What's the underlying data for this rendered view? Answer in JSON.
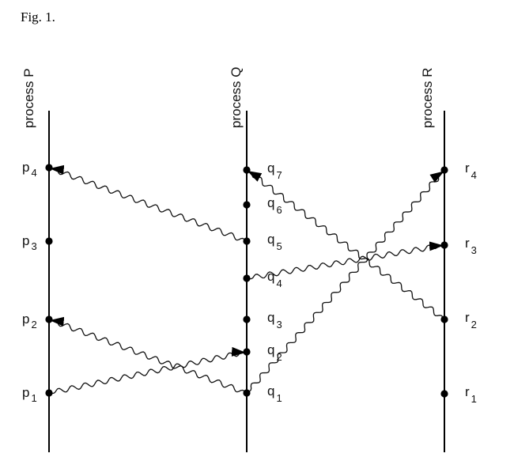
{
  "figure": {
    "caption": "Fig. 1."
  },
  "processes": [
    {
      "id": "P",
      "label": "process P"
    },
    {
      "id": "Q",
      "label": "process Q"
    },
    {
      "id": "R",
      "label": "process R"
    }
  ],
  "events": [
    {
      "id": "p1",
      "process": "P",
      "letter": "p",
      "sub": "1"
    },
    {
      "id": "p2",
      "process": "P",
      "letter": "p",
      "sub": "2"
    },
    {
      "id": "p3",
      "process": "P",
      "letter": "p",
      "sub": "3"
    },
    {
      "id": "p4",
      "process": "P",
      "letter": "p",
      "sub": "4"
    },
    {
      "id": "q1",
      "process": "Q",
      "letter": "q",
      "sub": "1"
    },
    {
      "id": "q2",
      "process": "Q",
      "letter": "q",
      "sub": "2"
    },
    {
      "id": "q3",
      "process": "Q",
      "letter": "q",
      "sub": "3"
    },
    {
      "id": "q4",
      "process": "Q",
      "letter": "q",
      "sub": "4"
    },
    {
      "id": "q5",
      "process": "Q",
      "letter": "q",
      "sub": "5"
    },
    {
      "id": "q6",
      "process": "Q",
      "letter": "q",
      "sub": "6"
    },
    {
      "id": "q7",
      "process": "Q",
      "letter": "q",
      "sub": "7"
    },
    {
      "id": "r1",
      "process": "R",
      "letter": "r",
      "sub": "1"
    },
    {
      "id": "r2",
      "process": "R",
      "letter": "r",
      "sub": "2"
    },
    {
      "id": "r3",
      "process": "R",
      "letter": "r",
      "sub": "3"
    },
    {
      "id": "r4",
      "process": "R",
      "letter": "r",
      "sub": "4"
    }
  ],
  "messages": [
    {
      "from": "p1",
      "to": "q2"
    },
    {
      "from": "q1",
      "to": "p2"
    },
    {
      "from": "q1",
      "to": "r4"
    },
    {
      "from": "q4",
      "to": "r3"
    },
    {
      "from": "q5",
      "to": "p4"
    },
    {
      "from": "r2",
      "to": "q7"
    }
  ]
}
